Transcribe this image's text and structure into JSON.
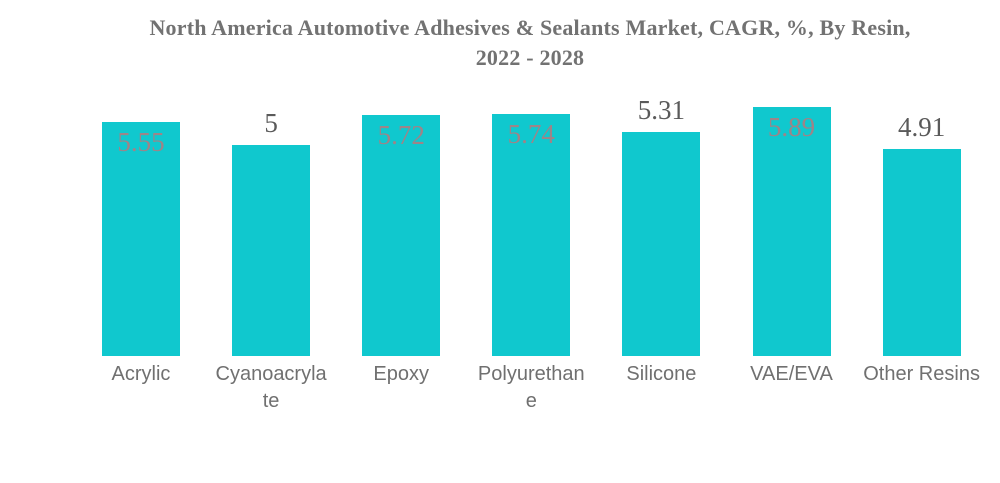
{
  "chart_data": {
    "type": "bar",
    "title": "North America Automotive Adhesives & Sealants Market, CAGR, %, By Resin, 2022 - 2028",
    "title_lines": [
      "North America Automotive Adhesives & Sealants Market, CAGR, %, By Resin,",
      "2022 - 2028"
    ],
    "xlabel": "",
    "ylabel": "",
    "ylim": [
      0,
      6
    ],
    "grid": false,
    "legend": "none",
    "axes_visible": false,
    "bar_color": "#10c8ce",
    "value_label_color_inside": "#9e8488",
    "value_label_color_outside": "#5a5a5a",
    "categories": [
      "Acrylic",
      "Cyanoacrylate",
      "Epoxy",
      "Polyurethane",
      "Silicone",
      "VAE/EVA",
      "Other Resins"
    ],
    "values": [
      5.55,
      5,
      5.72,
      5.74,
      5.31,
      5.89,
      4.91
    ],
    "points": [
      {
        "category": "Acrylic",
        "category_lines": [
          "Acrylic"
        ],
        "value": 5.55,
        "label": "5.55",
        "label_inside": true
      },
      {
        "category": "Cyanoacrylate",
        "category_lines": [
          "Cyanoacryla",
          "te"
        ],
        "value": 5,
        "label": "5",
        "label_inside": false
      },
      {
        "category": "Epoxy",
        "category_lines": [
          "Epoxy"
        ],
        "value": 5.72,
        "label": "5.72",
        "label_inside": true
      },
      {
        "category": "Polyurethane",
        "category_lines": [
          "Polyurethan",
          "e"
        ],
        "value": 5.74,
        "label": "5.74",
        "label_inside": true
      },
      {
        "category": "Silicone",
        "category_lines": [
          "Silicone"
        ],
        "value": 5.31,
        "label": "5.31",
        "label_inside": false
      },
      {
        "category": "VAE/EVA",
        "category_lines": [
          "VAE/EVA"
        ],
        "value": 5.89,
        "label": "5.89",
        "label_inside": true
      },
      {
        "category": "Other Resins",
        "category_lines": [
          "Other Resins"
        ],
        "value": 4.91,
        "label": "4.91",
        "label_inside": false
      }
    ]
  }
}
